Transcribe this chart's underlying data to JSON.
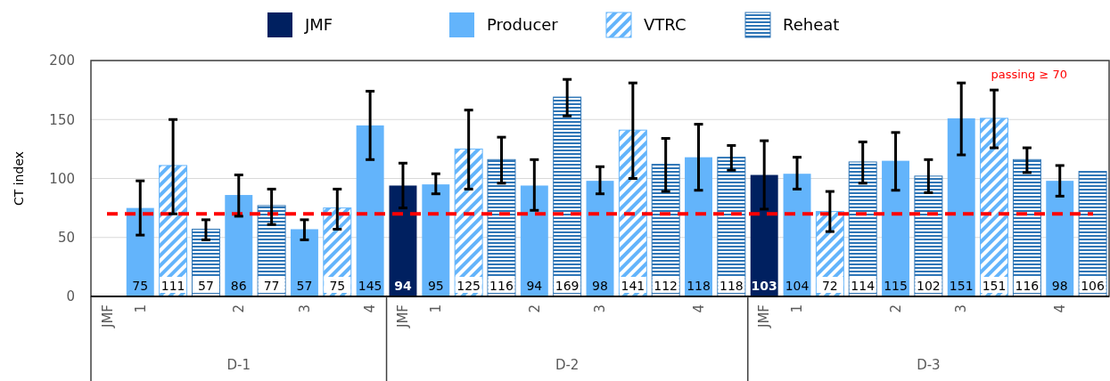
{
  "chart_data": {
    "type": "bar",
    "ylabel": "CT index",
    "categories": [
      "JMF",
      "1",
      null,
      null,
      "2",
      null,
      "3",
      null,
      "4",
      "JMF",
      "1",
      null,
      null,
      "2",
      null,
      "3",
      null,
      null,
      "4",
      null,
      "JMF",
      "1",
      null,
      null,
      "2",
      null,
      "3",
      null,
      null,
      "4",
      null
    ],
    "series": [
      {
        "name": "JMF",
        "color": "#002060",
        "values": [
          null,
          null,
          null,
          null,
          null,
          null,
          null,
          null,
          null,
          94,
          null,
          null,
          null,
          null,
          null,
          null,
          null,
          null,
          null,
          null,
          103,
          null,
          null,
          null,
          null,
          null,
          null,
          null,
          null,
          null,
          null
        ],
        "errors": [
          null,
          null,
          null,
          null,
          null,
          null,
          null,
          null,
          null,
          [
            75,
            113
          ],
          null,
          null,
          null,
          null,
          null,
          null,
          null,
          null,
          null,
          null,
          [
            74,
            132
          ],
          null,
          null,
          null,
          null,
          null,
          null,
          null,
          null,
          null,
          null
        ]
      },
      {
        "name": "Producer",
        "color": "#63b4fb",
        "values": [
          null,
          75,
          null,
          null,
          86,
          null,
          57,
          null,
          145,
          null,
          95,
          null,
          null,
          94,
          null,
          98,
          null,
          null,
          118,
          null,
          null,
          104,
          null,
          null,
          115,
          null,
          151,
          null,
          null,
          98,
          null
        ],
        "errors": [
          null,
          [
            52,
            98
          ],
          null,
          null,
          [
            68,
            103
          ],
          null,
          [
            48,
            65
          ],
          null,
          [
            116,
            174
          ],
          null,
          [
            87,
            104
          ],
          null,
          null,
          [
            73,
            116
          ],
          null,
          [
            87,
            110
          ],
          null,
          null,
          [
            90,
            146
          ],
          null,
          null,
          [
            91,
            118
          ],
          null,
          null,
          [
            90,
            139
          ],
          null,
          [
            120,
            181
          ],
          null,
          null,
          [
            85,
            111
          ],
          null
        ]
      },
      {
        "name": "VTRC",
        "color": "#63b4fb",
        "values": [
          null,
          null,
          111,
          null,
          null,
          null,
          null,
          75,
          null,
          null,
          null,
          125,
          null,
          null,
          null,
          null,
          141,
          null,
          null,
          null,
          null,
          null,
          72,
          null,
          null,
          null,
          null,
          151,
          null,
          null,
          null
        ],
        "errors": [
          null,
          null,
          [
            70,
            150
          ],
          null,
          null,
          null,
          null,
          [
            57,
            91
          ],
          null,
          null,
          null,
          [
            91,
            158
          ],
          null,
          null,
          null,
          null,
          [
            100,
            181
          ],
          null,
          null,
          null,
          null,
          null,
          [
            55,
            89
          ],
          null,
          null,
          null,
          null,
          [
            126,
            175
          ],
          null,
          null,
          null
        ]
      },
      {
        "name": "Reheat",
        "color": "#2e75b6",
        "values": [
          null,
          null,
          null,
          57,
          null,
          77,
          null,
          null,
          null,
          null,
          null,
          null,
          116,
          null,
          169,
          null,
          null,
          112,
          null,
          118,
          null,
          null,
          null,
          114,
          null,
          102,
          null,
          null,
          116,
          null,
          106
        ],
        "errors": [
          null,
          null,
          null,
          [
            48,
            65
          ],
          null,
          [
            61,
            91
          ],
          null,
          null,
          null,
          null,
          null,
          null,
          [
            96,
            135
          ],
          null,
          [
            153,
            184
          ],
          null,
          null,
          [
            89,
            134
          ],
          null,
          [
            107,
            128
          ],
          null,
          null,
          null,
          [
            96,
            131
          ],
          null,
          [
            88,
            116
          ],
          null,
          null,
          [
            105,
            126
          ],
          null,
          null
        ]
      }
    ],
    "ylim": [
      0,
      200
    ],
    "yticks": [
      0,
      50,
      100,
      150,
      200
    ],
    "grid": "y",
    "legend": "top",
    "data_labels": true,
    "ref_lines": [
      {
        "axis": "y",
        "value": 70,
        "label": "passing ≥ 70",
        "color": "#ff0000",
        "line_style": "dashed"
      }
    ],
    "annotations": [
      "D-1",
      "D-2",
      "D-3"
    ]
  }
}
